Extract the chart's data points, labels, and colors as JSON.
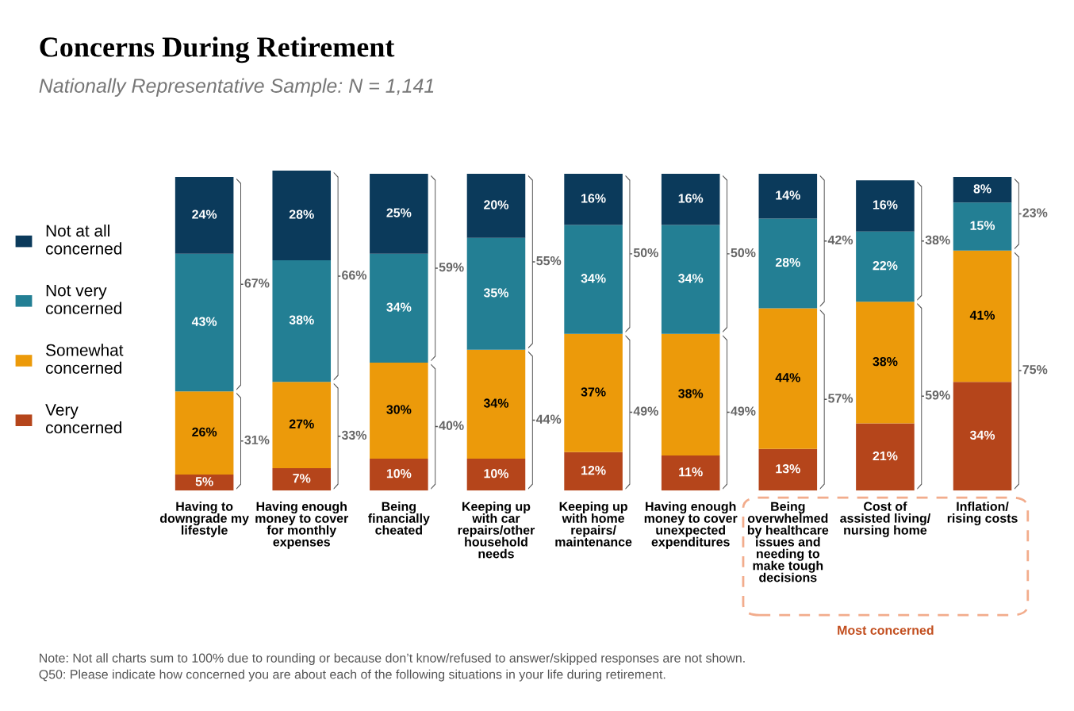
{
  "chart_data": {
    "type": "bar",
    "stacked": true,
    "title": "Concerns During Retirement",
    "subtitle": "Nationally Representative Sample: N = 1,141",
    "categories": [
      "Having to\ndowngrade my\nlifestyle",
      "Having enough\nmoney to cover\nfor monthly\nexpenses",
      "Being\nfinancially\ncheated",
      "Keeping up\nwith car\nrepairs/other\nhousehold\nneeds",
      "Keeping up\nwith home\nrepairs/\nmaintenance",
      "Having enough\nmoney to cover\nunexpected\nexpenditures",
      "Being\noverwhelmed\nby healthcare\nissues and\nneeding to\nmake tough\ndecisions",
      "Cost of\nassisted living/\nnursing home",
      "Inflation/\nrising costs"
    ],
    "series": [
      {
        "name": "Very\nconcerned",
        "color": "#b5451b",
        "values": [
          5,
          7,
          10,
          10,
          12,
          11,
          13,
          21,
          34
        ],
        "value_labels": [
          "5%",
          "7%",
          "10%",
          "10%",
          "12%",
          "11%",
          "13%",
          "21%",
          "34%"
        ]
      },
      {
        "name": "Somewhat\nconcerned",
        "color": "#ec9a0a",
        "values": [
          26,
          27,
          30,
          34,
          37,
          38,
          44,
          38,
          41
        ],
        "value_labels": [
          "26%",
          "27%",
          "30%",
          "34%",
          "37%",
          "38%",
          "44%",
          "38%",
          "41%"
        ]
      },
      {
        "name": "Not very\nconcerned",
        "color": "#237f94",
        "values": [
          43,
          38,
          34,
          35,
          34,
          34,
          28,
          22,
          15
        ],
        "value_labels": [
          "43%",
          "38%",
          "34%",
          "35%",
          "34%",
          "34%",
          "28%",
          "22%",
          "15%"
        ]
      },
      {
        "name": "Not at all\nconcerned",
        "color": "#0b3a5b",
        "values": [
          24,
          28,
          25,
          20,
          16,
          16,
          14,
          16,
          8
        ],
        "value_labels": [
          "24%",
          "28%",
          "25%",
          "20%",
          "16%",
          "16%",
          "14%",
          "16%",
          "8%"
        ]
      }
    ],
    "legend": "left",
    "annotations": [
      "31%",
      "67%",
      "33%",
      "66%",
      "40%",
      "59%",
      "44%",
      "55%",
      "49%",
      "50%",
      "49%",
      "50%",
      "57%",
      "42%",
      "59%",
      "38%",
      "75%",
      "23%",
      "Most concerned",
      "Note: Not all charts sum to 100% due to rounding or because don’t know/refused to answer/skipped responses are not shown.",
      "Q50: Please indicate how concerned you are about each of the following situations in your life during retirement."
    ]
  }
}
